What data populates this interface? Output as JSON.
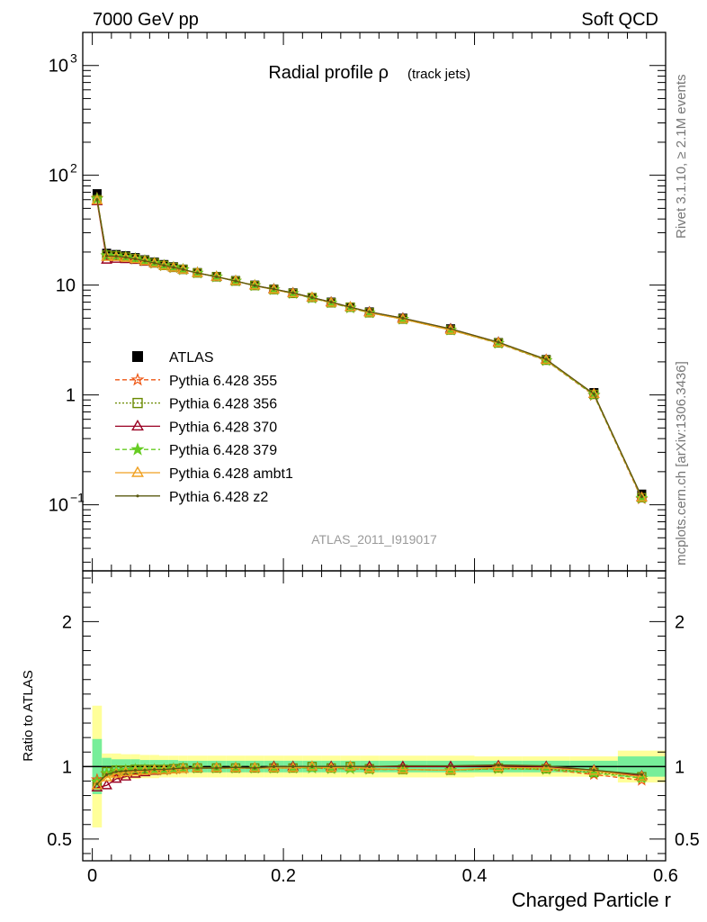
{
  "header": {
    "left": "7000 GeV pp",
    "right": "Soft QCD"
  },
  "side_labels": {
    "rivet": "Rivet 3.1.10, ≥ 2.1M events",
    "mcplots": "mcplots.cern.ch [arXiv:1306.3436]"
  },
  "chart_data": [
    {
      "type": "line",
      "title": "Radial profile ρ (track jets)",
      "title_main": "Radial profile ρ",
      "title_sub": "(track jets)",
      "watermark": "ATLAS_2011_I919017",
      "y_scale": "log",
      "ylim": [
        0.025,
        2000
      ],
      "xlim": [
        -0.01,
        0.6
      ],
      "y_ticks": [
        {
          "value": 1000,
          "base": "10",
          "exp": "3"
        },
        {
          "value": 100,
          "base": "10",
          "exp": "2"
        },
        {
          "value": 10,
          "base": "10",
          "exp": ""
        },
        {
          "value": 1,
          "base": "1",
          "exp": ""
        },
        {
          "value": 0.1,
          "base": "10",
          "exp": "−1"
        }
      ],
      "grid": false,
      "legend_position": "lower-left",
      "x": [
        0.005,
        0.015,
        0.025,
        0.035,
        0.045,
        0.055,
        0.065,
        0.075,
        0.085,
        0.095,
        0.11,
        0.13,
        0.15,
        0.17,
        0.19,
        0.21,
        0.23,
        0.25,
        0.27,
        0.29,
        0.325,
        0.375,
        0.425,
        0.475,
        0.525,
        0.575
      ],
      "series": [
        {
          "name": "ATLAS",
          "color": "#000000",
          "marker": "square-filled",
          "dash": "",
          "values": [
            68,
            19.5,
            19,
            18.5,
            17.8,
            17,
            16.2,
            15.4,
            14.7,
            14.0,
            13.0,
            12.0,
            11.0,
            10.0,
            9.2,
            8.5,
            7.7,
            7.0,
            6.3,
            5.7,
            5.0,
            4.0,
            3.0,
            2.1,
            1.05,
            0.125
          ]
        },
        {
          "name": "Pythia 6.428 355",
          "color": "#ee5511",
          "marker": "star-open",
          "dash": "5,3",
          "values": [
            62,
            18.5,
            18.3,
            17.9,
            17.3,
            16.6,
            15.8,
            15.0,
            14.4,
            13.8,
            12.9,
            11.9,
            10.9,
            9.9,
            9.1,
            8.4,
            7.6,
            6.9,
            6.2,
            5.6,
            4.9,
            3.9,
            2.95,
            2.05,
            0.99,
            0.113
          ]
        },
        {
          "name": "Pythia 6.428 356",
          "color": "#6a8a00",
          "marker": "square-open",
          "dash": "2,2",
          "values": [
            60,
            18.8,
            18.5,
            18.0,
            17.4,
            16.7,
            15.9,
            15.1,
            14.5,
            13.9,
            12.9,
            11.9,
            10.9,
            9.9,
            9.1,
            8.4,
            7.7,
            6.9,
            6.3,
            5.6,
            4.9,
            3.9,
            2.97,
            2.07,
            1.01,
            0.116
          ]
        },
        {
          "name": "Pythia 6.428 370",
          "color": "#990022",
          "marker": "triangle-open",
          "dash": "",
          "values": [
            58,
            17.0,
            17.3,
            17.2,
            16.9,
            16.3,
            15.7,
            15.0,
            14.4,
            13.8,
            12.9,
            11.9,
            10.9,
            9.9,
            9.2,
            8.5,
            7.7,
            7.0,
            6.3,
            5.7,
            5.0,
            4.0,
            3.02,
            2.1,
            1.02,
            0.117
          ]
        },
        {
          "name": "Pythia 6.428 379",
          "color": "#66cc22",
          "marker": "star-filled",
          "dash": "5,3",
          "values": [
            61,
            18.6,
            18.4,
            18.0,
            17.4,
            16.7,
            15.9,
            15.1,
            14.5,
            13.9,
            12.9,
            11.9,
            10.9,
            9.9,
            9.1,
            8.4,
            7.6,
            6.9,
            6.2,
            5.6,
            4.9,
            3.9,
            2.96,
            2.06,
            1.0,
            0.115
          ]
        },
        {
          "name": "Pythia 6.428 ambt1",
          "color": "#f0a020",
          "marker": "triangle-open",
          "dash": "",
          "values": [
            59,
            18.0,
            18.0,
            17.7,
            17.2,
            16.5,
            15.8,
            15.0,
            14.4,
            13.8,
            12.9,
            11.9,
            10.9,
            9.9,
            9.1,
            8.4,
            7.7,
            6.9,
            6.3,
            5.6,
            4.9,
            3.9,
            2.98,
            2.08,
            1.02,
            0.116
          ]
        },
        {
          "name": "Pythia 6.428 z2",
          "color": "#5a5a10",
          "marker": "dot",
          "dash": "",
          "values": [
            60,
            18.4,
            18.3,
            17.9,
            17.3,
            16.6,
            15.9,
            15.1,
            14.5,
            13.9,
            12.9,
            11.9,
            10.9,
            9.9,
            9.2,
            8.5,
            7.7,
            7.0,
            6.3,
            5.7,
            5.0,
            4.0,
            3.02,
            2.11,
            1.02,
            0.118
          ]
        }
      ]
    },
    {
      "type": "line",
      "ylabel": "Ratio to ATLAS",
      "xlabel": "Charged Particle r",
      "ylim": [
        0.35,
        2.35
      ],
      "xlim": [
        -0.01,
        0.6
      ],
      "y_ticks": [
        "0.5",
        "1",
        "2"
      ],
      "x_ticks": [
        "0",
        "0.2",
        "0.4",
        "0.6"
      ],
      "reference_line": 1,
      "bands": {
        "x_edges": [
          0.0,
          0.01,
          0.02,
          0.03,
          0.04,
          0.05,
          0.06,
          0.07,
          0.08,
          0.09,
          0.1,
          0.12,
          0.14,
          0.16,
          0.18,
          0.2,
          0.22,
          0.24,
          0.26,
          0.28,
          0.3,
          0.35,
          0.4,
          0.45,
          0.5,
          0.55,
          0.6
        ],
        "inner_color": "#77ee99",
        "outer_color": "#ffff99",
        "inner_half_width": [
          0.19,
          0.06,
          0.05,
          0.05,
          0.05,
          0.045,
          0.045,
          0.045,
          0.045,
          0.04,
          0.04,
          0.04,
          0.04,
          0.04,
          0.04,
          0.04,
          0.04,
          0.04,
          0.04,
          0.04,
          0.04,
          0.04,
          0.04,
          0.04,
          0.04,
          0.07
        ],
        "outer_half_width": [
          0.42,
          0.09,
          0.09,
          0.085,
          0.085,
          0.08,
          0.08,
          0.075,
          0.075,
          0.075,
          0.075,
          0.075,
          0.075,
          0.075,
          0.075,
          0.075,
          0.075,
          0.075,
          0.075,
          0.075,
          0.075,
          0.075,
          0.07,
          0.07,
          0.07,
          0.11
        ]
      },
      "x": [
        0.005,
        0.015,
        0.025,
        0.035,
        0.045,
        0.055,
        0.065,
        0.075,
        0.085,
        0.095,
        0.11,
        0.13,
        0.15,
        0.17,
        0.19,
        0.21,
        0.23,
        0.25,
        0.27,
        0.29,
        0.325,
        0.375,
        0.425,
        0.475,
        0.525,
        0.575
      ],
      "series": [
        {
          "name": "Pythia 6.428 355",
          "color": "#ee5511",
          "marker": "star-open",
          "dash": "5,3",
          "values": [
            0.91,
            0.95,
            0.96,
            0.97,
            0.97,
            0.975,
            0.975,
            0.975,
            0.98,
            0.985,
            0.99,
            0.99,
            0.99,
            0.99,
            0.99,
            0.99,
            0.99,
            0.985,
            0.985,
            0.98,
            0.98,
            0.975,
            0.985,
            0.98,
            0.945,
            0.905
          ]
        },
        {
          "name": "Pythia 6.428 356",
          "color": "#6a8a00",
          "marker": "square-open",
          "dash": "2,2",
          "values": [
            0.88,
            0.965,
            0.975,
            0.975,
            0.98,
            0.98,
            0.98,
            0.98,
            0.985,
            0.99,
            0.99,
            0.99,
            0.99,
            0.99,
            0.99,
            0.99,
            1.0,
            0.99,
            1.0,
            0.985,
            0.98,
            0.975,
            0.99,
            0.985,
            0.96,
            0.93
          ]
        },
        {
          "name": "Pythia 6.428 370",
          "color": "#990022",
          "marker": "triangle-open",
          "dash": "",
          "values": [
            0.855,
            0.87,
            0.915,
            0.93,
            0.95,
            0.96,
            0.97,
            0.975,
            0.98,
            0.985,
            0.99,
            0.99,
            0.99,
            0.99,
            1.0,
            1.0,
            1.0,
            1.0,
            1.0,
            1.0,
            1.0,
            1.0,
            1.005,
            1.0,
            0.975,
            0.935
          ]
        },
        {
          "name": "Pythia 6.428 379",
          "color": "#66cc22",
          "marker": "star-filled",
          "dash": "5,3",
          "values": [
            0.895,
            0.955,
            0.97,
            0.975,
            0.98,
            0.98,
            0.98,
            0.98,
            0.985,
            0.99,
            0.99,
            0.99,
            0.99,
            0.99,
            0.99,
            0.99,
            0.99,
            0.985,
            0.985,
            0.98,
            0.98,
            0.975,
            0.985,
            0.98,
            0.955,
            0.92
          ]
        },
        {
          "name": "Pythia 6.428 ambt1",
          "color": "#f0a020",
          "marker": "triangle-open",
          "dash": "",
          "values": [
            0.87,
            0.925,
            0.95,
            0.96,
            0.965,
            0.97,
            0.975,
            0.975,
            0.98,
            0.985,
            0.99,
            0.99,
            0.99,
            0.99,
            0.99,
            0.99,
            1.0,
            0.99,
            1.0,
            0.985,
            0.98,
            0.975,
            0.995,
            0.99,
            0.97,
            0.93
          ]
        },
        {
          "name": "Pythia 6.428 z2",
          "color": "#5a5a10",
          "marker": "dot",
          "dash": "",
          "values": [
            0.88,
            0.945,
            0.965,
            0.97,
            0.975,
            0.975,
            0.98,
            0.98,
            0.985,
            0.99,
            0.99,
            0.99,
            0.995,
            0.99,
            1.0,
            1.0,
            1.0,
            1.0,
            1.0,
            1.0,
            1.005,
            1.005,
            1.01,
            1.005,
            0.975,
            0.945
          ]
        }
      ]
    }
  ]
}
